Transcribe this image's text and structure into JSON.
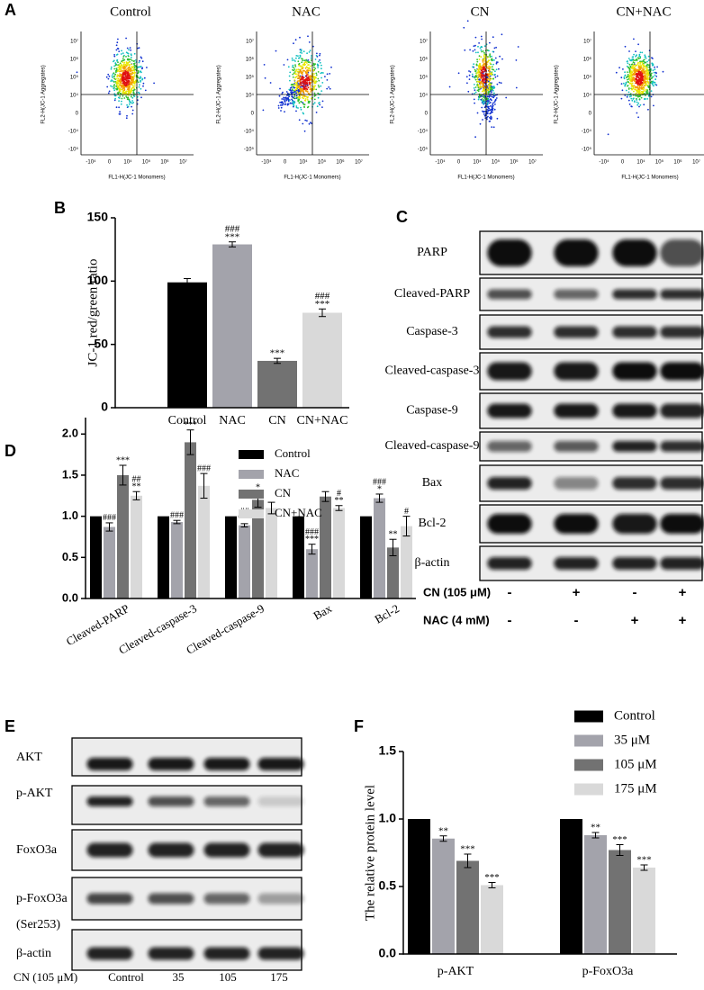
{
  "panel_labels": [
    "A",
    "B",
    "C",
    "D",
    "E",
    "F"
  ],
  "flow_cytometry": {
    "titles": [
      "Control",
      "NAC",
      "CN",
      "CN+NAC"
    ],
    "y_label": "FL2-H(JC-1 Aggregates)",
    "x_label": "FL1-H(JC-1 Monomers)",
    "y_tick_labels": [
      "10⁷",
      "10⁶",
      "10⁵",
      "10⁴",
      "0",
      "-10⁴",
      "-10⁵"
    ],
    "x_tick_labels": [
      "-10⁴",
      "0",
      "10⁴",
      "10⁵",
      "10⁶",
      "10⁷"
    ]
  },
  "blot_c": {
    "rows": [
      "PARP",
      "Cleaved-PARP",
      "Caspase-3",
      "Cleaved-caspase-3",
      "Caspase-9",
      "Cleaved-caspase-9",
      "Bax",
      "Bcl-2",
      "β-actin"
    ],
    "conditions": [
      {
        "label": "CN (105 μM)",
        "lanes": [
          "-",
          "+",
          "-",
          "+"
        ]
      },
      {
        "label": "NAC (4 mM)",
        "lanes": [
          "-",
          "-",
          "+",
          "+"
        ]
      }
    ]
  },
  "blot_e": {
    "rows": [
      "AKT",
      "p-AKT",
      "FoxO3a",
      "p-FoxO3a",
      "β-actin"
    ],
    "row_note": "(Ser253)",
    "lane_title": "CN (105 μM)",
    "lanes": [
      "Control",
      "35",
      "105",
      "175"
    ]
  },
  "chart_data": [
    {
      "type": "bar",
      "y_label": "JC-1 red/green ratio",
      "categories": [
        "Control",
        "NAC",
        "CN",
        "CN+NAC"
      ],
      "values": [
        99,
        129,
        37,
        75
      ],
      "errors": [
        3,
        2,
        2,
        3
      ],
      "annotations": [
        null,
        [
          "###",
          "***"
        ],
        [
          "***"
        ],
        [
          "###",
          "***"
        ]
      ],
      "colors": [
        "#000000",
        "#a3a3ab",
        "#727272",
        "#d9d9d9"
      ],
      "ylim": [
        0,
        150
      ],
      "yticks": [
        0,
        50,
        100,
        150
      ]
    },
    {
      "type": "grouped_bar",
      "legend": "upper center",
      "categories": [
        "Cleaved-PARP",
        "Cleaved-caspase-3",
        "Cleaved-caspase-9",
        "Bax",
        "Bcl-2"
      ],
      "series": [
        {
          "name": "Control",
          "color": "#000000",
          "values": [
            1,
            1,
            1,
            1,
            1
          ]
        },
        {
          "name": "NAC",
          "color": "#a3a3ab",
          "values": [
            0.87,
            0.93,
            0.89,
            0.6,
            1.22
          ],
          "errors": [
            0.05,
            0.02,
            0.02,
            0.06,
            0.05
          ],
          "annotations": [
            [
              "###"
            ],
            [
              "###"
            ],
            [
              "##",
              "***"
            ],
            [
              "###",
              "***"
            ],
            [
              "###",
              "*"
            ]
          ]
        },
        {
          "name": "CN",
          "color": "#727272",
          "values": [
            1.5,
            1.9,
            1.2,
            1.24,
            0.62
          ],
          "errors": [
            0.12,
            0.15,
            0.09,
            0.06,
            0.1
          ],
          "annotations": [
            [
              "***"
            ],
            [
              "***"
            ],
            [
              "*"
            ],
            null,
            [
              "**"
            ]
          ]
        },
        {
          "name": "CN+NAC",
          "color": "#d9d9d9",
          "values": [
            1.25,
            1.37,
            1.1,
            1.1,
            0.88
          ],
          "errors": [
            0.05,
            0.15,
            0.07,
            0.03,
            0.12
          ],
          "annotations": [
            [
              "##",
              "**"
            ],
            [
              "###"
            ],
            null,
            [
              "#",
              "**"
            ],
            [
              "#"
            ]
          ]
        }
      ],
      "ylim": [
        0,
        2.2
      ],
      "yticks": [
        {
          "value": 0,
          "label": "0.0"
        },
        0.5,
        {
          "value": 1,
          "label": "1.0"
        },
        1.5,
        {
          "value": 2,
          "label": "2.0"
        }
      ]
    },
    {
      "type": "grouped_bar",
      "legend": "upper right",
      "y_label": "The relative protein level",
      "categories": [
        "p-AKT",
        "p-FoxO3a"
      ],
      "series": [
        {
          "name": "Control",
          "color": "#000000",
          "values": [
            1,
            1
          ]
        },
        {
          "name": "35 μM",
          "color": "#a3a3ab",
          "values": [
            0.855,
            0.88
          ],
          "errors": [
            0.02,
            0.02
          ],
          "annotations": [
            [
              "**"
            ],
            [
              "**"
            ]
          ]
        },
        {
          "name": "105 μM",
          "color": "#727272",
          "values": [
            0.69,
            0.77
          ],
          "errors": [
            0.05,
            0.04
          ],
          "annotations": [
            [
              "***"
            ],
            [
              "***"
            ]
          ]
        },
        {
          "name": "175 μM",
          "color": "#d9d9d9",
          "values": [
            0.51,
            0.64
          ],
          "errors": [
            0.02,
            0.02
          ],
          "annotations": [
            [
              "***"
            ],
            [
              "***"
            ]
          ]
        }
      ],
      "ylim": [
        0,
        1.5
      ],
      "yticks": [
        {
          "value": 0,
          "label": "0.0"
        },
        0.5,
        {
          "value": 1,
          "label": "1.0"
        },
        1.5
      ]
    }
  ]
}
